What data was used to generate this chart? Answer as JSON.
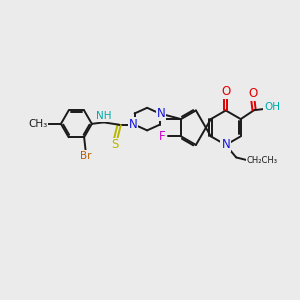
{
  "bg_color": "#ebebeb",
  "bond_color": "#1a1a1a",
  "bond_width": 1.4,
  "dbo": 0.055,
  "atom_colors": {
    "C": "#1a1a1a",
    "N": "#1414e0",
    "O": "#e00000",
    "F": "#cc00cc",
    "S": "#b8b800",
    "Br": "#b85c00",
    "NH": "#00aaaa",
    "OH": "#00aaaa"
  },
  "fs": 8.5,
  "fs_small": 7.5
}
